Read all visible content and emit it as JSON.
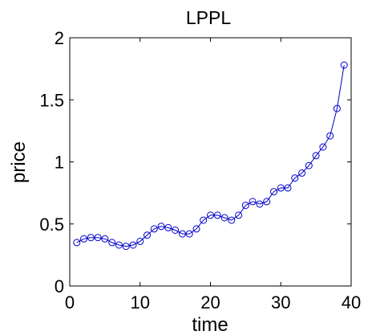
{
  "chart_data": {
    "type": "line",
    "title": "LPPL",
    "xlabel": "time",
    "ylabel": "price",
    "xlim": [
      0,
      40
    ],
    "ylim": [
      0,
      2
    ],
    "x_ticks": [
      "0",
      "10",
      "20",
      "30",
      "40"
    ],
    "y_ticks": [
      "0",
      "0.5",
      "1",
      "1.5",
      "2"
    ],
    "grid": false,
    "marker": "circle",
    "colors": {
      "series": "#0000cc",
      "axes": "#000000",
      "background": "#ffffff"
    },
    "series": [
      {
        "x": [
          1,
          2,
          3,
          4,
          5,
          6,
          7,
          8,
          9,
          10,
          11,
          12,
          13,
          14,
          15,
          16,
          17,
          18,
          19,
          20,
          21,
          22,
          23,
          24,
          25,
          26,
          27,
          28,
          29,
          30,
          31,
          32,
          33,
          34,
          35,
          36,
          37,
          38,
          39
        ],
        "values": [
          0.35,
          0.38,
          0.39,
          0.39,
          0.38,
          0.35,
          0.33,
          0.32,
          0.33,
          0.36,
          0.41,
          0.46,
          0.48,
          0.47,
          0.45,
          0.42,
          0.42,
          0.46,
          0.53,
          0.57,
          0.57,
          0.55,
          0.53,
          0.57,
          0.65,
          0.68,
          0.66,
          0.68,
          0.76,
          0.79,
          0.79,
          0.87,
          0.91,
          0.97,
          1.05,
          1.12,
          1.21,
          1.43,
          1.78
        ]
      }
    ]
  }
}
